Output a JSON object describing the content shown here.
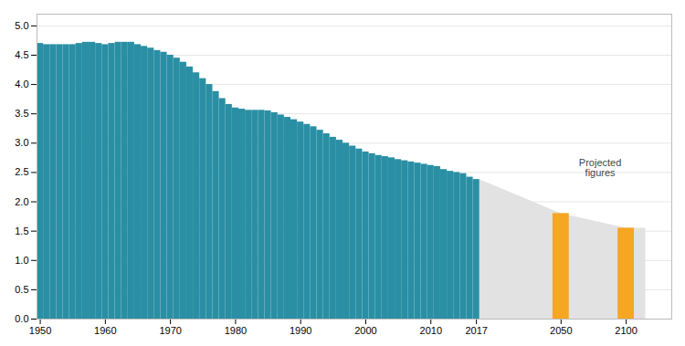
{
  "chart_data": {
    "type": "bar",
    "categories": [
      "1950",
      null,
      null,
      null,
      null,
      null,
      null,
      null,
      null,
      null,
      "1960",
      null,
      null,
      null,
      null,
      null,
      null,
      null,
      null,
      null,
      "1970",
      null,
      null,
      null,
      null,
      null,
      null,
      null,
      null,
      null,
      "1980",
      null,
      null,
      null,
      null,
      null,
      null,
      null,
      null,
      null,
      "1990",
      null,
      null,
      null,
      null,
      null,
      null,
      null,
      null,
      null,
      "2000",
      null,
      null,
      null,
      null,
      null,
      null,
      null,
      null,
      null,
      "2010",
      null,
      null,
      null,
      null,
      null,
      null,
      "2017",
      "2050",
      "2100"
    ],
    "values": [
      4.7,
      4.68,
      4.68,
      4.68,
      4.68,
      4.68,
      4.7,
      4.72,
      4.72,
      4.7,
      4.68,
      4.7,
      4.72,
      4.72,
      4.72,
      4.68,
      4.65,
      4.62,
      4.58,
      4.55,
      4.5,
      4.45,
      4.38,
      4.3,
      4.2,
      4.1,
      4.0,
      3.88,
      3.76,
      3.66,
      3.6,
      3.58,
      3.56,
      3.56,
      3.56,
      3.55,
      3.52,
      3.48,
      3.44,
      3.4,
      3.36,
      3.32,
      3.28,
      3.22,
      3.16,
      3.1,
      3.05,
      3.0,
      2.95,
      2.9,
      2.85,
      2.82,
      2.79,
      2.77,
      2.75,
      2.72,
      2.7,
      2.68,
      2.66,
      2.64,
      2.62,
      2.6,
      2.55,
      2.52,
      2.5,
      2.48,
      2.42,
      2.38,
      1.8,
      1.55
    ],
    "colors": [
      "#2a8fa4",
      "#2a8fa4",
      "#2a8fa4",
      "#2a8fa4",
      "#2a8fa4",
      "#2a8fa4",
      "#2a8fa4",
      "#2a8fa4",
      "#2a8fa4",
      "#2a8fa4",
      "#2a8fa4",
      "#2a8fa4",
      "#2a8fa4",
      "#2a8fa4",
      "#2a8fa4",
      "#2a8fa4",
      "#2a8fa4",
      "#2a8fa4",
      "#2a8fa4",
      "#2a8fa4",
      "#2a8fa4",
      "#2a8fa4",
      "#2a8fa4",
      "#2a8fa4",
      "#2a8fa4",
      "#2a8fa4",
      "#2a8fa4",
      "#2a8fa4",
      "#2a8fa4",
      "#2a8fa4",
      "#2a8fa4",
      "#2a8fa4",
      "#2a8fa4",
      "#2a8fa4",
      "#2a8fa4",
      "#2a8fa4",
      "#2a8fa4",
      "#2a8fa4",
      "#2a8fa4",
      "#2a8fa4",
      "#2a8fa4",
      "#2a8fa4",
      "#2a8fa4",
      "#2a8fa4",
      "#2a8fa4",
      "#2a8fa4",
      "#2a8fa4",
      "#2a8fa4",
      "#2a8fa4",
      "#2a8fa4",
      "#2a8fa4",
      "#2a8fa4",
      "#2a8fa4",
      "#2a8fa4",
      "#2a8fa4",
      "#2a8fa4",
      "#2a8fa4",
      "#2a8fa4",
      "#2a8fa4",
      "#2a8fa4",
      "#2a8fa4",
      "#2a8fa4",
      "#2a8fa4",
      "#2a8fa4",
      "#2a8fa4",
      "#2a8fa4",
      "#2a8fa4",
      "#2a8fa4",
      "#f5a623",
      "#f5a623"
    ],
    "annotations": [
      "Projected\nfigures"
    ],
    "ylim": [
      0,
      5.2
    ],
    "yticks": [
      {
        "value": 0.0,
        "label": "0.0"
      },
      0.5,
      {
        "value": 1.0,
        "label": "1.0"
      },
      1.5,
      {
        "value": 2.0,
        "label": "2.0"
      },
      2.5,
      {
        "value": 3.0,
        "label": "3.0"
      },
      3.5,
      {
        "value": 4.0,
        "label": "4.0"
      },
      4.5,
      {
        "value": 5.0,
        "label": "5.0"
      }
    ],
    "grid": true
  }
}
